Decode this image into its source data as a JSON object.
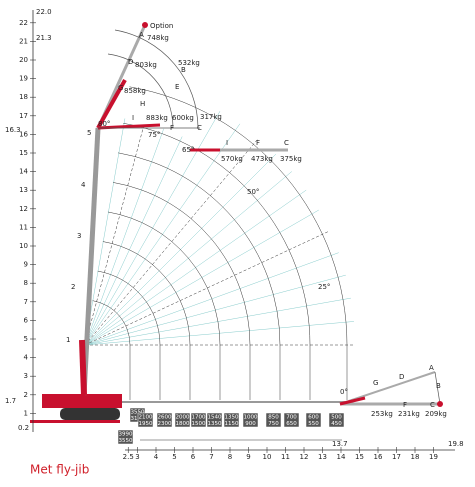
{
  "title": "Met fly-jib",
  "y_axis": {
    "ticks": [
      1,
      2,
      3,
      4,
      5,
      6,
      7,
      8,
      9,
      10,
      11,
      12,
      13,
      14,
      15,
      16,
      17,
      18,
      19,
      20,
      21,
      22
    ],
    "extra": [
      "22.0",
      "21.3",
      "16.3",
      "1.7",
      "0.2"
    ]
  },
  "x_axis": {
    "ticks": [
      2.5,
      3,
      4,
      5,
      6,
      7,
      8,
      9,
      10,
      11,
      12,
      13,
      14,
      15,
      16,
      17,
      18,
      19
    ],
    "extra": [
      "13.7",
      "19.8"
    ]
  },
  "mast_points": [
    "1",
    "2",
    "3",
    "4",
    "5"
  ],
  "jib_80": {
    "option": "Option",
    "points": [
      "A",
      "B",
      "C",
      "D",
      "E",
      "F",
      "G",
      "H",
      "I"
    ],
    "angle": "80°",
    "loads": [
      "748kg",
      "803kg",
      "532kg",
      "858kg",
      "883kg",
      "600kg",
      "317kg"
    ]
  },
  "jib_65": {
    "points": [
      "I",
      "F",
      "C"
    ],
    "angle": "65°",
    "loads": [
      "570kg",
      "473kg",
      "375kg"
    ]
  },
  "jib_0": {
    "points": [
      "A",
      "B",
      "C",
      "D",
      "G",
      "F"
    ],
    "angle": "0°",
    "loads": [
      "253kg",
      "231kg",
      "209kg"
    ]
  },
  "angles": [
    "75°",
    "50°",
    "25°"
  ],
  "load_boxes": [
    [
      "3990",
      "3550"
    ],
    [
      "3550",
      "3150"
    ],
    [
      "2100",
      "1950"
    ],
    [
      "2600",
      "2300"
    ],
    [
      "2000",
      "1800"
    ],
    [
      "1700",
      "1500"
    ],
    [
      "1540",
      "1350"
    ],
    [
      "1350",
      "1150"
    ],
    [
      "1000",
      "900"
    ],
    [
      "850",
      "750"
    ],
    [
      "700",
      "650"
    ],
    [
      "600",
      "550"
    ],
    [
      "500",
      "450"
    ]
  ]
}
